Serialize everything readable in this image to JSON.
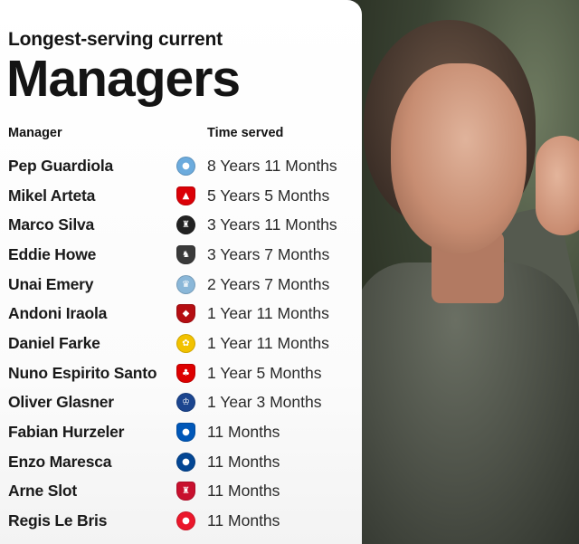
{
  "header": {
    "kicker": "Longest-serving current",
    "title": "Managers"
  },
  "columns": {
    "manager": "Manager",
    "time": "Time served"
  },
  "rows": [
    {
      "manager": "Pep Guardiola",
      "time": "8 Years 11 Months",
      "crest": "manchester-city-crest",
      "color": "#6cabdd",
      "glyph": "●"
    },
    {
      "manager": "Mikel Arteta",
      "time": "5 Years 5 Months",
      "crest": "arsenal-crest",
      "color": "#db0007",
      "glyph": "▲"
    },
    {
      "manager": "Marco Silva",
      "time": "3 Years 11 Months",
      "crest": "fulham-crest",
      "color": "#222222",
      "glyph": "♜"
    },
    {
      "manager": "Eddie Howe",
      "time": "3 Years 7 Months",
      "crest": "newcastle-crest",
      "color": "#3a3a3a",
      "glyph": "♞"
    },
    {
      "manager": "Unai Emery",
      "time": "2 Years 7 Months",
      "crest": "aston-villa-crest",
      "color": "#8ab7d8",
      "glyph": "♛"
    },
    {
      "manager": "Andoni Iraola",
      "time": "1 Year 11 Months",
      "crest": "bournemouth-crest",
      "color": "#b50e12",
      "glyph": "◆"
    },
    {
      "manager": "Daniel Farke",
      "time": "1 Year 11 Months",
      "crest": "leeds-crest",
      "color": "#f2c200",
      "glyph": "✿"
    },
    {
      "manager": "Nuno Espirito Santo",
      "time": "1 Year 5 Months",
      "crest": "nottingham-forest-crest",
      "color": "#dd0000",
      "glyph": "♣"
    },
    {
      "manager": "Oliver Glasner",
      "time": "1 Year 3 Months",
      "crest": "crystal-palace-crest",
      "color": "#1b458f",
      "glyph": "♔"
    },
    {
      "manager": "Fabian Hurzeler",
      "time": "11 Months",
      "crest": "brighton-crest",
      "color": "#0057b8",
      "glyph": "●"
    },
    {
      "manager": "Enzo Maresca",
      "time": "11 Months",
      "crest": "chelsea-crest",
      "color": "#034694",
      "glyph": "●"
    },
    {
      "manager": "Arne Slot",
      "time": "11 Months",
      "crest": "liverpool-crest",
      "color": "#c8102e",
      "glyph": "♜"
    },
    {
      "manager": "Regis Le Bris",
      "time": "11 Months",
      "crest": "sunderland-crest",
      "color": "#eb172b",
      "glyph": "●"
    }
  ]
}
